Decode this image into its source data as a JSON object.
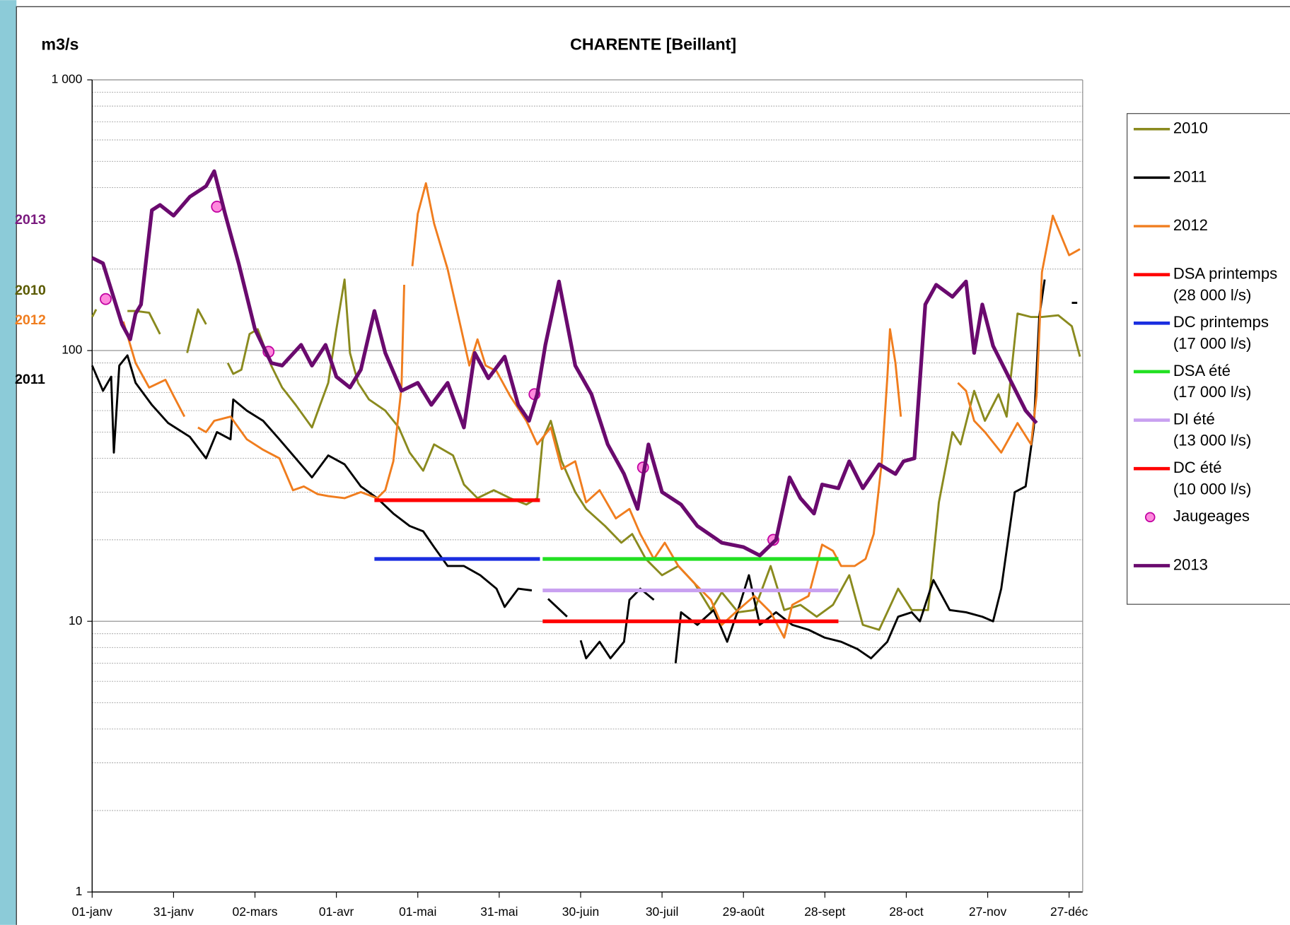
{
  "chart_data": {
    "type": "line",
    "title": "CHARENTE [Beillant]",
    "y_label": "m3/s",
    "log_y": true,
    "grid": true,
    "legend": "right",
    "xlim": [
      0,
      365
    ],
    "xticks": [
      {
        "value": 0,
        "label": "01-janv"
      },
      {
        "value": 30,
        "label": "31-janv"
      },
      {
        "value": 60,
        "label": "02-mars"
      },
      {
        "value": 90,
        "label": "01-avr"
      },
      {
        "value": 120,
        "label": "01-mai"
      },
      {
        "value": 150,
        "label": "31-mai"
      },
      {
        "value": 180,
        "label": "30-juin"
      },
      {
        "value": 210,
        "label": "30-juil"
      },
      {
        "value": 240,
        "label": "29-août"
      },
      {
        "value": 270,
        "label": "28-sept"
      },
      {
        "value": 300,
        "label": "28-oct"
      },
      {
        "value": 330,
        "label": "27-nov"
      },
      {
        "value": 360,
        "label": "27-déc"
      }
    ],
    "ylim": [
      1,
      1000
    ],
    "yticks": [
      1,
      10,
      100,
      {
        "value": 1000,
        "label": "1 000"
      }
    ],
    "yminor": [
      2,
      3,
      4,
      5,
      6,
      7,
      8,
      9,
      20,
      30,
      40,
      50,
      60,
      70,
      80,
      90,
      200,
      300,
      400,
      500,
      600,
      700,
      800,
      900
    ],
    "annotations": [
      {
        "text": "2013",
        "color": "#7a1a7e"
      },
      {
        "text": "2010",
        "color": "#5a5a00"
      },
      {
        "text": "2012",
        "color": "#f07d1e"
      },
      {
        "text": "2011",
        "color": "#000000"
      }
    ],
    "series": [
      {
        "name": "2010",
        "color": "#8a8a1e",
        "width": 2.5,
        "x": [
          0,
          1.5,
          6,
          13,
          16,
          21,
          25,
          30,
          35,
          39,
          42,
          46,
          50,
          52,
          55,
          58,
          61,
          66,
          70,
          75,
          81,
          84,
          87,
          90,
          93,
          95,
          98,
          102,
          108,
          113,
          117,
          122,
          126,
          133,
          137,
          142,
          148,
          154,
          160,
          164,
          166,
          169,
          173,
          178,
          182,
          189,
          195,
          199,
          204,
          210,
          216,
          222,
          228,
          232,
          238,
          244,
          250,
          255,
          261,
          267,
          273,
          279,
          284,
          290,
          293,
          297,
          302,
          308,
          312,
          317,
          320,
          325,
          329,
          334,
          337,
          341,
          346,
          350,
          356,
          361,
          364
        ],
        "values": [
          133,
          142,
          null,
          140,
          140,
          138,
          115,
          null,
          98,
          142,
          125,
          null,
          90,
          82,
          85,
          115,
          120,
          88,
          73,
          63,
          52,
          63,
          76,
          120,
          183,
          98,
          76,
          66,
          60,
          52,
          42,
          36,
          45,
          41,
          32,
          28.5,
          30.5,
          28.5,
          27,
          28.5,
          47,
          55,
          39,
          30,
          26,
          22.5,
          19.5,
          21,
          17,
          14.8,
          16,
          13.8,
          11,
          12.8,
          10.8,
          11,
          16,
          11,
          11.5,
          10.4,
          11.5,
          14.8,
          9.7,
          9.3,
          10.8,
          13.2,
          11,
          11,
          27.5,
          50,
          45,
          71,
          55,
          69,
          57,
          137,
          133,
          133,
          135,
          123,
          95
        ]
      },
      {
        "name": "2011",
        "color": "#000000",
        "width": 2.5,
        "x": [
          0,
          4,
          7,
          8,
          10,
          13,
          16,
          22,
          28,
          36,
          42,
          46,
          51,
          52,
          57,
          63,
          69,
          75,
          81,
          87,
          93,
          99,
          105,
          111,
          117,
          122,
          126,
          131,
          137,
          143,
          149,
          152,
          157,
          162,
          165,
          168,
          175,
          177,
          180,
          182,
          187,
          191,
          196,
          198,
          202,
          207,
          211,
          215,
          217,
          223,
          229,
          234,
          238,
          242,
          246,
          252,
          258,
          264,
          270,
          276,
          282,
          287,
          293,
          297,
          302,
          305,
          310,
          316,
          322,
          328,
          332,
          335,
          340,
          344,
          347,
          349,
          351,
          358,
          361,
          363
        ],
        "values": [
          88,
          71,
          80,
          42,
          88,
          96,
          76,
          63,
          54,
          48,
          40,
          50,
          47,
          66,
          60,
          55,
          47,
          40,
          34,
          41,
          38,
          31.5,
          28.5,
          25,
          22.5,
          21.5,
          18.8,
          16,
          16,
          14.8,
          13.2,
          11.3,
          13.2,
          13,
          null,
          12.1,
          10.4,
          null,
          8.5,
          7.3,
          8.4,
          7.3,
          8.4,
          12,
          13.2,
          12,
          null,
          7,
          10.8,
          9.7,
          11,
          8.4,
          11,
          14.8,
          9.7,
          10.8,
          9.7,
          9.3,
          8.7,
          8.4,
          7.9,
          7.3,
          8.4,
          10.4,
          10.8,
          10,
          14.2,
          11,
          10.8,
          10.4,
          10,
          13.2,
          30,
          31.5,
          52,
          133,
          183,
          null,
          150,
          150
        ]
      },
      {
        "name": "2012",
        "color": "#f07d1e",
        "width": 2.5,
        "x": [
          11.5,
          16,
          21,
          27,
          30,
          34,
          36.5,
          39,
          42,
          45,
          51,
          57,
          63,
          69,
          74,
          78,
          83,
          87,
          93,
          99,
          105,
          108,
          111,
          114,
          115,
          116.5,
          118,
          120,
          123,
          126,
          131,
          136,
          139,
          142,
          145,
          149,
          154,
          160,
          164,
          169,
          173,
          178,
          182,
          187,
          193,
          198,
          202,
          207,
          211,
          216,
          222,
          228,
          232,
          238,
          244,
          250,
          255,
          258,
          264,
          269,
          273,
          276,
          281,
          285,
          288,
          291,
          293,
          294,
          296,
          298,
          308,
          319,
          322,
          325,
          329,
          335,
          341,
          346,
          348,
          350,
          354,
          360,
          364
        ],
        "values": [
          128,
          90,
          73,
          78,
          68,
          57,
          null,
          52,
          50,
          55,
          57,
          47,
          43,
          40,
          30.5,
          31.5,
          29.5,
          29,
          28.5,
          30,
          28.5,
          30.5,
          39,
          73,
          175,
          null,
          205,
          320,
          415,
          295,
          200,
          120,
          88,
          110,
          88,
          84,
          68,
          55,
          45,
          52,
          36.5,
          39,
          27.5,
          30.5,
          24,
          26,
          21,
          17,
          19.5,
          16,
          13.8,
          12,
          9.7,
          11,
          12.4,
          10.8,
          8.7,
          11.5,
          12.4,
          19.2,
          18.2,
          16,
          16,
          17,
          21,
          39,
          79,
          120,
          90,
          57,
          null,
          76,
          71,
          55,
          50,
          42,
          54,
          45,
          68,
          195,
          315,
          225,
          237
        ]
      },
      {
        "name": [
          "DSA printemps",
          "(28 000 l/s)"
        ],
        "color": "#ff0000",
        "width": 4.5,
        "x": [
          104,
          165
        ],
        "values": [
          28,
          28
        ]
      },
      {
        "name": [
          "DC printemps",
          "(17 000 l/s)"
        ],
        "color": "#1a2ee0",
        "width": 4.5,
        "x": [
          104,
          165
        ],
        "values": [
          17,
          17
        ]
      },
      {
        "name": [
          "DSA été",
          "(17 000 l/s)"
        ],
        "color": "#22e022",
        "width": 4.5,
        "x": [
          166,
          275
        ],
        "values": [
          17,
          17
        ]
      },
      {
        "name": [
          "DI été",
          "(13 000 l/s)"
        ],
        "color": "#c8a0f0",
        "width": 4.5,
        "x": [
          166,
          275
        ],
        "values": [
          13,
          13
        ]
      },
      {
        "name": [
          "DC été",
          "(10 000 l/s)"
        ],
        "color": "#ff0000",
        "width": 4.5,
        "x": [
          166,
          275
        ],
        "values": [
          10,
          10
        ]
      },
      {
        "name": "Jaugeages",
        "type": "scatter",
        "color": "#ff88dd",
        "edge": "#c000a0",
        "x": [
          5,
          46,
          65,
          163,
          203,
          251
        ],
        "values": [
          155,
          340,
          99,
          69,
          37,
          20
        ]
      },
      {
        "name": "2013",
        "color": "#6a0a6e",
        "width": 4.5,
        "x": [
          0,
          4,
          11,
          14,
          16,
          18,
          22,
          25,
          30,
          36,
          42,
          45,
          49,
          54,
          60,
          66,
          70,
          77,
          81,
          86,
          90,
          95,
          99,
          104,
          108,
          114,
          120,
          125,
          131,
          137,
          141,
          146,
          152,
          157,
          161,
          164,
          167,
          172,
          178,
          184,
          190,
          196,
          201,
          205,
          210,
          217,
          223,
          232,
          240,
          246,
          252,
          257,
          261,
          266,
          269,
          275,
          279,
          284,
          290,
          296,
          299,
          303,
          307,
          311,
          317,
          322,
          325,
          328,
          332,
          338,
          344,
          348
        ],
        "values": [
          220,
          210,
          125,
          110,
          137,
          148,
          330,
          345,
          315,
          370,
          405,
          460,
          320,
          210,
          120,
          90,
          88,
          105,
          88,
          105,
          80,
          73,
          85,
          140,
          98,
          71,
          76,
          63,
          76,
          52,
          98,
          79,
          95,
          63,
          55,
          69,
          105,
          180,
          88,
          69,
          45,
          35,
          26,
          45,
          30,
          27,
          22.5,
          19.5,
          18.8,
          17.5,
          20,
          34,
          28.5,
          25,
          32,
          31,
          39,
          31,
          38,
          35,
          39,
          40,
          148,
          175,
          158,
          180,
          98,
          148,
          104,
          79,
          60,
          54
        ]
      }
    ]
  }
}
